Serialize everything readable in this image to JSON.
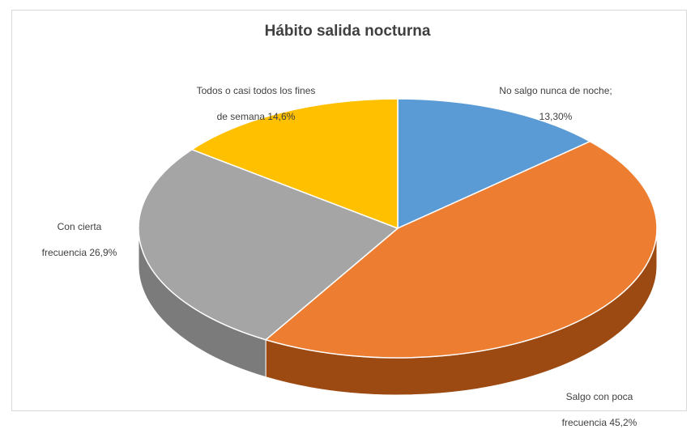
{
  "chart_data": {
    "type": "pie",
    "title": "Hábito salida nocturna",
    "slices": [
      {
        "label_line1": "No salgo nunca de noche;",
        "label_line2": "13,30%",
        "value": 13.3,
        "color": "#5b9bd5",
        "side_color": "#2e6fad"
      },
      {
        "label_line1": "Salgo con poca",
        "label_line2": "frecuencia 45,2%",
        "value": 45.2,
        "color": "#ed7d31",
        "side_color": "#9c4a12"
      },
      {
        "label_line1": "Con cierta",
        "label_line2": "frecuencia 26,9%",
        "value": 26.9,
        "color": "#a5a5a5",
        "side_color": "#7b7b7b"
      },
      {
        "label_line1": "Todos o casi todos los fines",
        "label_line2": "de semana 14,6%",
        "value": 14.6,
        "color": "#ffc000",
        "side_color": "#c99500"
      }
    ],
    "legend": "none",
    "style": "3d"
  }
}
